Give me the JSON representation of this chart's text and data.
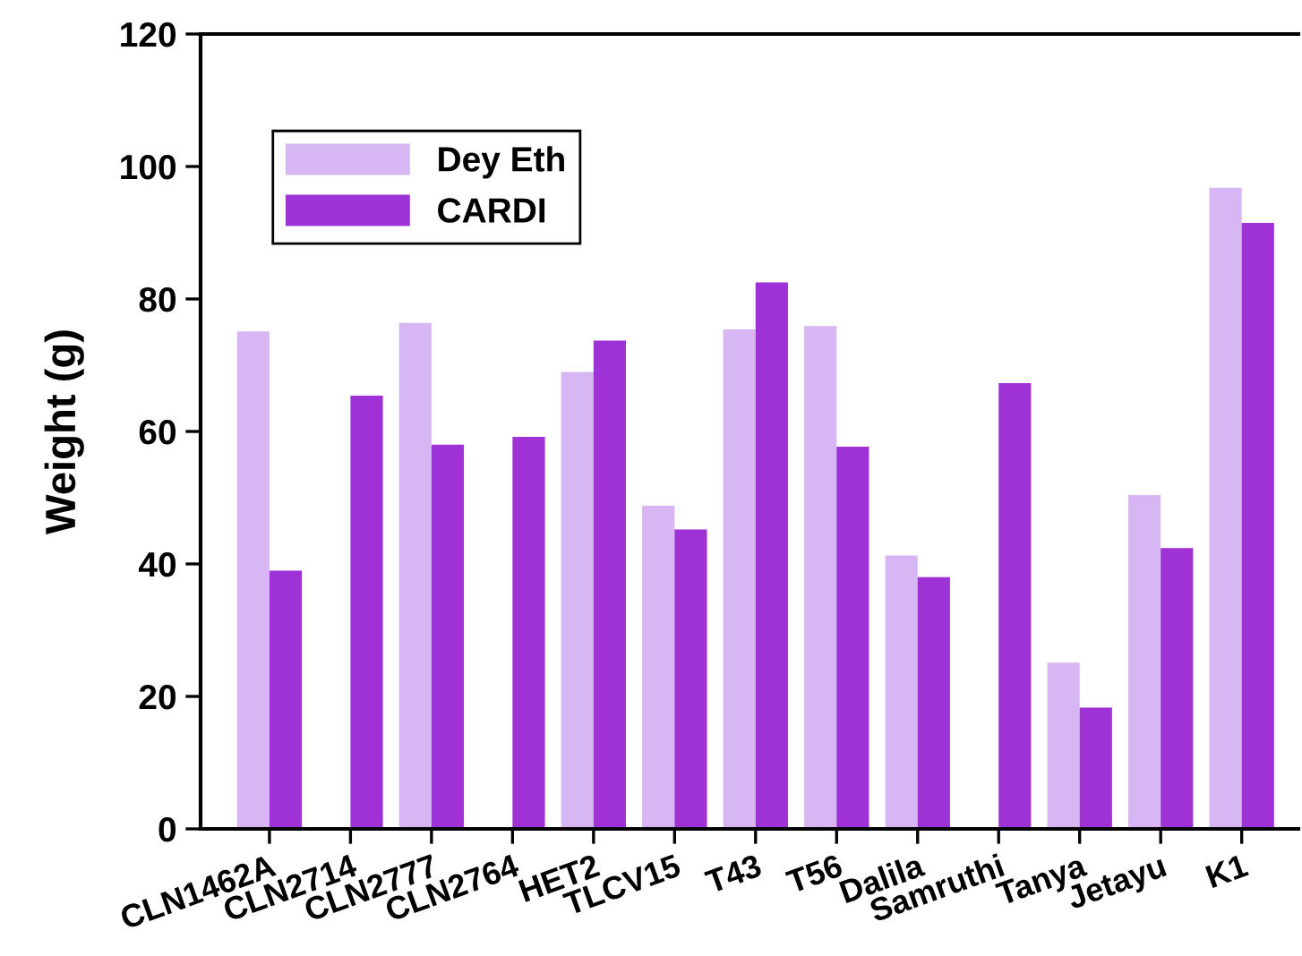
{
  "chart_data": {
    "type": "bar",
    "ylabel": "Weight (g)",
    "categories": [
      "CLN1462A",
      "CLN2714",
      "CLN2777",
      "CLN2764",
      "HET2",
      "TLCV15",
      "T43",
      "T56",
      "Dalila",
      "Samruthi",
      "Tanya",
      "Jetayu",
      "K1"
    ],
    "series": [
      {
        "name": "Dey Eth",
        "color": "#d7b7f3",
        "values": [
          75.1,
          null,
          76.4,
          null,
          69.0,
          48.8,
          75.4,
          75.9,
          41.3,
          null,
          25.1,
          50.4,
          96.8
        ]
      },
      {
        "name": "CARDI",
        "color": "#9e32d6",
        "values": [
          39.0,
          65.4,
          58.0,
          59.2,
          73.7,
          45.2,
          82.5,
          57.7,
          38.0,
          67.3,
          18.3,
          42.4,
          91.5
        ]
      }
    ],
    "ylim": [
      0,
      120
    ],
    "yticks": [
      0,
      20,
      40,
      60,
      80,
      100,
      120
    ],
    "grid": false,
    "legend": "top left"
  }
}
